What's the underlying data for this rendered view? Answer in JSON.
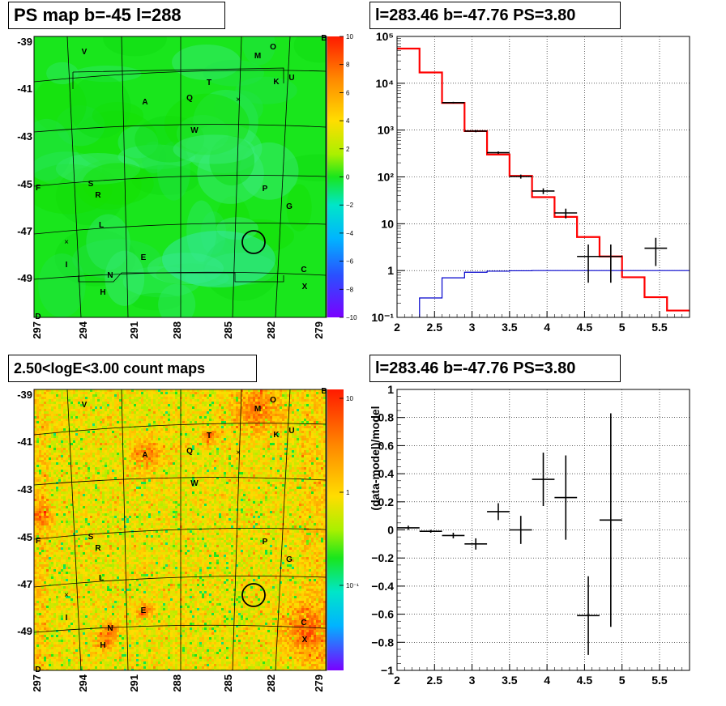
{
  "panels": {
    "ps_map": {
      "title": "PS map b=-45 l=288"
    },
    "count_map": {
      "title": "2.50<logE<3.00 count maps"
    },
    "spectrum": {
      "title": "l=283.46 b=-47.76 PS=3.80"
    },
    "residual": {
      "title": "l=283.46 b=-47.76 PS=3.80"
    }
  },
  "chart_data": [
    {
      "id": "ps_map",
      "type": "heatmap",
      "title": "PS map b=-45 l=288",
      "x_ticks": [
        "297",
        "294",
        "291",
        "288",
        "285",
        "282",
        "279"
      ],
      "y_ticks": [
        "-39",
        "-41",
        "-43",
        "-45",
        "-47",
        "-49"
      ],
      "colorbar_ticks": [
        "10",
        "8",
        "6",
        "4",
        "2",
        "0",
        "−2",
        "−4",
        "−6",
        "−8",
        "−10"
      ],
      "colorbar_range": [
        -10,
        10
      ],
      "source_labels": [
        "V",
        "M",
        "O",
        "B",
        "T",
        "K",
        "U",
        "A",
        "Q",
        "W",
        "S",
        "R",
        "F",
        "P",
        "G",
        "L",
        "E",
        "N",
        "I",
        "H",
        "C",
        "X",
        "D"
      ],
      "colors": {
        "background": "#19e61c",
        "map_variation": "#2ee86a"
      }
    },
    {
      "id": "count_map",
      "type": "heatmap",
      "title": "2.50<logE<3.00 count maps",
      "x_ticks": [
        "297",
        "294",
        "291",
        "288",
        "285",
        "282",
        "279"
      ],
      "y_ticks": [
        "-39",
        "-41",
        "-43",
        "-45",
        "-47",
        "-49"
      ],
      "colorbar_ticks": [
        "10",
        "1",
        "10⁻¹"
      ],
      "colorbar_scale": "log",
      "source_labels": [
        "V",
        "M",
        "O",
        "B",
        "T",
        "K",
        "U",
        "A",
        "Q",
        "W",
        "S",
        "R",
        "F",
        "P",
        "G",
        "L",
        "E",
        "N",
        "I",
        "H",
        "C",
        "X",
        "D"
      ]
    },
    {
      "id": "spectrum",
      "type": "line",
      "title": "l=283.46 b=-47.76 PS=3.80",
      "xlim": [
        2.0,
        5.9
      ],
      "ylim": [
        0.1,
        100000
      ],
      "yscale": "log",
      "x_ticks": [
        "2",
        "2.5",
        "3",
        "3.5",
        "4",
        "4.5",
        "5",
        "5.5"
      ],
      "y_ticks": [
        "10⁻¹",
        "1",
        "10",
        "10²",
        "10³",
        "10⁴",
        "10⁵"
      ],
      "grid": true,
      "series": [
        {
          "style": "step",
          "color": "#ff0000",
          "edges": [
            2.0,
            2.3,
            2.6,
            2.9,
            3.2,
            3.5,
            3.8,
            4.1,
            4.4,
            4.7,
            5.0,
            5.3,
            5.6,
            5.9
          ],
          "values": [
            55000,
            17000,
            3800,
            950,
            300,
            105,
            37,
            14,
            5.2,
            2.0,
            0.72,
            0.27,
            0.14
          ]
        },
        {
          "style": "step",
          "color": "#0000cc",
          "edges": [
            2.3,
            2.6,
            2.9,
            3.2,
            3.5,
            3.8,
            4.1,
            4.4,
            4.7,
            5.0,
            5.3,
            5.6,
            5.9
          ],
          "values": [
            0.26,
            0.7,
            0.92,
            0.97,
            0.99,
            1.0,
            1.0,
            1.0,
            1.0,
            1.0,
            1.0,
            1.0
          ]
        },
        {
          "style": "errorbar",
          "color": "#000000",
          "points": [
            {
              "x": 2.75,
              "xerr": 0.15,
              "y": 3850,
              "ylo": 3700,
              "yhi": 4000
            },
            {
              "x": 3.05,
              "xerr": 0.15,
              "y": 950,
              "ylo": 900,
              "yhi": 1000
            },
            {
              "x": 3.35,
              "xerr": 0.15,
              "y": 330,
              "ylo": 310,
              "yhi": 350
            },
            {
              "x": 3.65,
              "xerr": 0.15,
              "y": 102,
              "ylo": 92,
              "yhi": 112
            },
            {
              "x": 3.95,
              "xerr": 0.15,
              "y": 50,
              "ylo": 43,
              "yhi": 57
            },
            {
              "x": 4.25,
              "xerr": 0.15,
              "y": 17,
              "ylo": 13,
              "yhi": 21
            },
            {
              "x": 4.55,
              "xerr": 0.15,
              "y": 2.0,
              "ylo": 0.55,
              "yhi": 3.6
            },
            {
              "x": 4.85,
              "xerr": 0.15,
              "y": 2.0,
              "ylo": 0.55,
              "yhi": 3.6
            },
            {
              "x": 5.45,
              "xerr": 0.15,
              "y": 3.0,
              "ylo": 1.25,
              "yhi": 5.0
            }
          ]
        }
      ]
    },
    {
      "id": "residual",
      "type": "scatter",
      "title": "l=283.46 b=-47.76 PS=3.80",
      "ylabel": "(data-model)/model",
      "xlim": [
        2.0,
        5.9
      ],
      "ylim": [
        -1,
        1
      ],
      "x_ticks": [
        "2",
        "2.5",
        "3",
        "3.5",
        "4",
        "4.5",
        "5",
        "5.5"
      ],
      "y_ticks": [
        "−1",
        "−0.8",
        "−0.6",
        "−0.4",
        "−0.2",
        "0",
        "0.2",
        "0.4",
        "0.6",
        "0.8",
        "1"
      ],
      "grid": true,
      "points": [
        {
          "x": 2.15,
          "xerr": 0.15,
          "y": 0.015,
          "ylo": 0.0,
          "yhi": 0.03
        },
        {
          "x": 2.45,
          "xerr": 0.15,
          "y": -0.01,
          "ylo": -0.02,
          "yhi": 0.0
        },
        {
          "x": 2.75,
          "xerr": 0.15,
          "y": -0.04,
          "ylo": -0.06,
          "yhi": -0.02
        },
        {
          "x": 3.05,
          "xerr": 0.15,
          "y": -0.1,
          "ylo": -0.14,
          "yhi": -0.06
        },
        {
          "x": 3.35,
          "xerr": 0.15,
          "y": 0.13,
          "ylo": 0.07,
          "yhi": 0.19
        },
        {
          "x": 3.65,
          "xerr": 0.15,
          "y": 0.0,
          "ylo": -0.1,
          "yhi": 0.1
        },
        {
          "x": 3.95,
          "xerr": 0.15,
          "y": 0.36,
          "ylo": 0.17,
          "yhi": 0.55
        },
        {
          "x": 4.25,
          "xerr": 0.15,
          "y": 0.23,
          "ylo": -0.07,
          "yhi": 0.53
        },
        {
          "x": 4.55,
          "xerr": 0.15,
          "y": -0.61,
          "ylo": -0.89,
          "yhi": -0.33
        },
        {
          "x": 4.85,
          "xerr": 0.15,
          "y": 0.07,
          "ylo": -0.69,
          "yhi": 0.83
        }
      ]
    }
  ]
}
